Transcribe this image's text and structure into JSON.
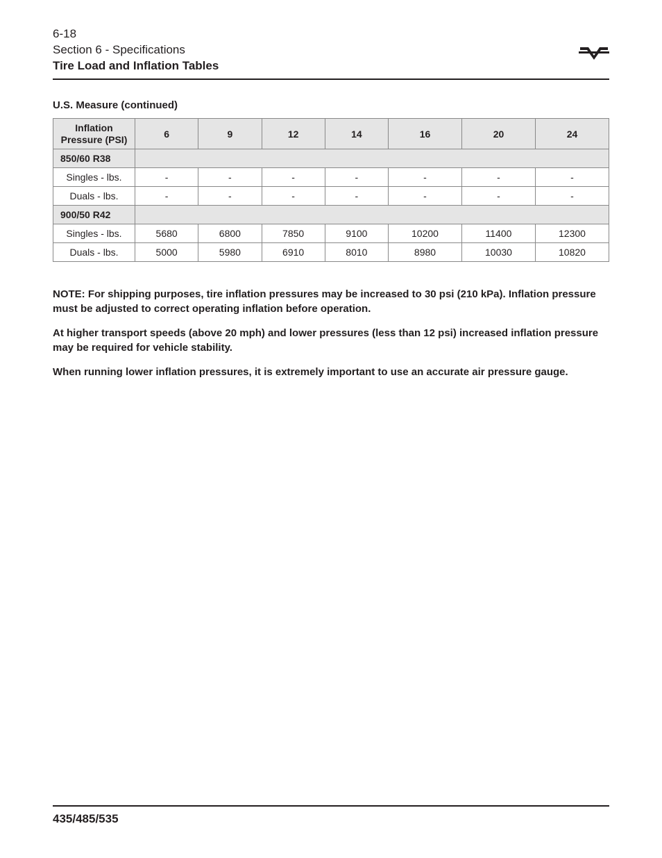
{
  "header": {
    "page_number": "6-18",
    "section_label": "Section 6 - Specifications",
    "title": "Tire Load and Inflation Tables"
  },
  "subheading": "U.S. Measure (continued)",
  "table": {
    "header_label": "Inflation Pressure (PSI)",
    "pressures": [
      "6",
      "9",
      "12",
      "14",
      "16",
      "20",
      "24"
    ],
    "groups": [
      {
        "size": "850/60 R38",
        "rows": [
          {
            "label": "Singles - lbs.",
            "values": [
              "-",
              "-",
              "-",
              "-",
              "-",
              "-",
              "-"
            ]
          },
          {
            "label": "Duals - lbs.",
            "values": [
              "-",
              "-",
              "-",
              "-",
              "-",
              "-",
              "-"
            ]
          }
        ]
      },
      {
        "size": "900/50 R42",
        "rows": [
          {
            "label": "Singles - lbs.",
            "values": [
              "5680",
              "6800",
              "7850",
              "9100",
              "10200",
              "11400",
              "12300"
            ]
          },
          {
            "label": "Duals - lbs.",
            "values": [
              "5000",
              "5980",
              "6910",
              "8010",
              "8980",
              "10030",
              "10820"
            ]
          }
        ]
      }
    ]
  },
  "notes": [
    "NOTE: For shipping purposes, tire inflation pressures may be increased to 30 psi (210 kPa). Inflation pressure must be adjusted to correct operating inflation before operation.",
    "At higher transport speeds (above 20 mph) and lower pressures (less than 12 psi) increased inflation pressure may be required for vehicle stability.",
    "When running lower inflation pressures, it is extremely important to use an accurate air pressure gauge."
  ],
  "footer": {
    "model": "435/485/535"
  },
  "colors": {
    "text": "#231f20",
    "border": "#888888",
    "header_bg": "#e5e5e5",
    "page_bg": "#ffffff"
  }
}
